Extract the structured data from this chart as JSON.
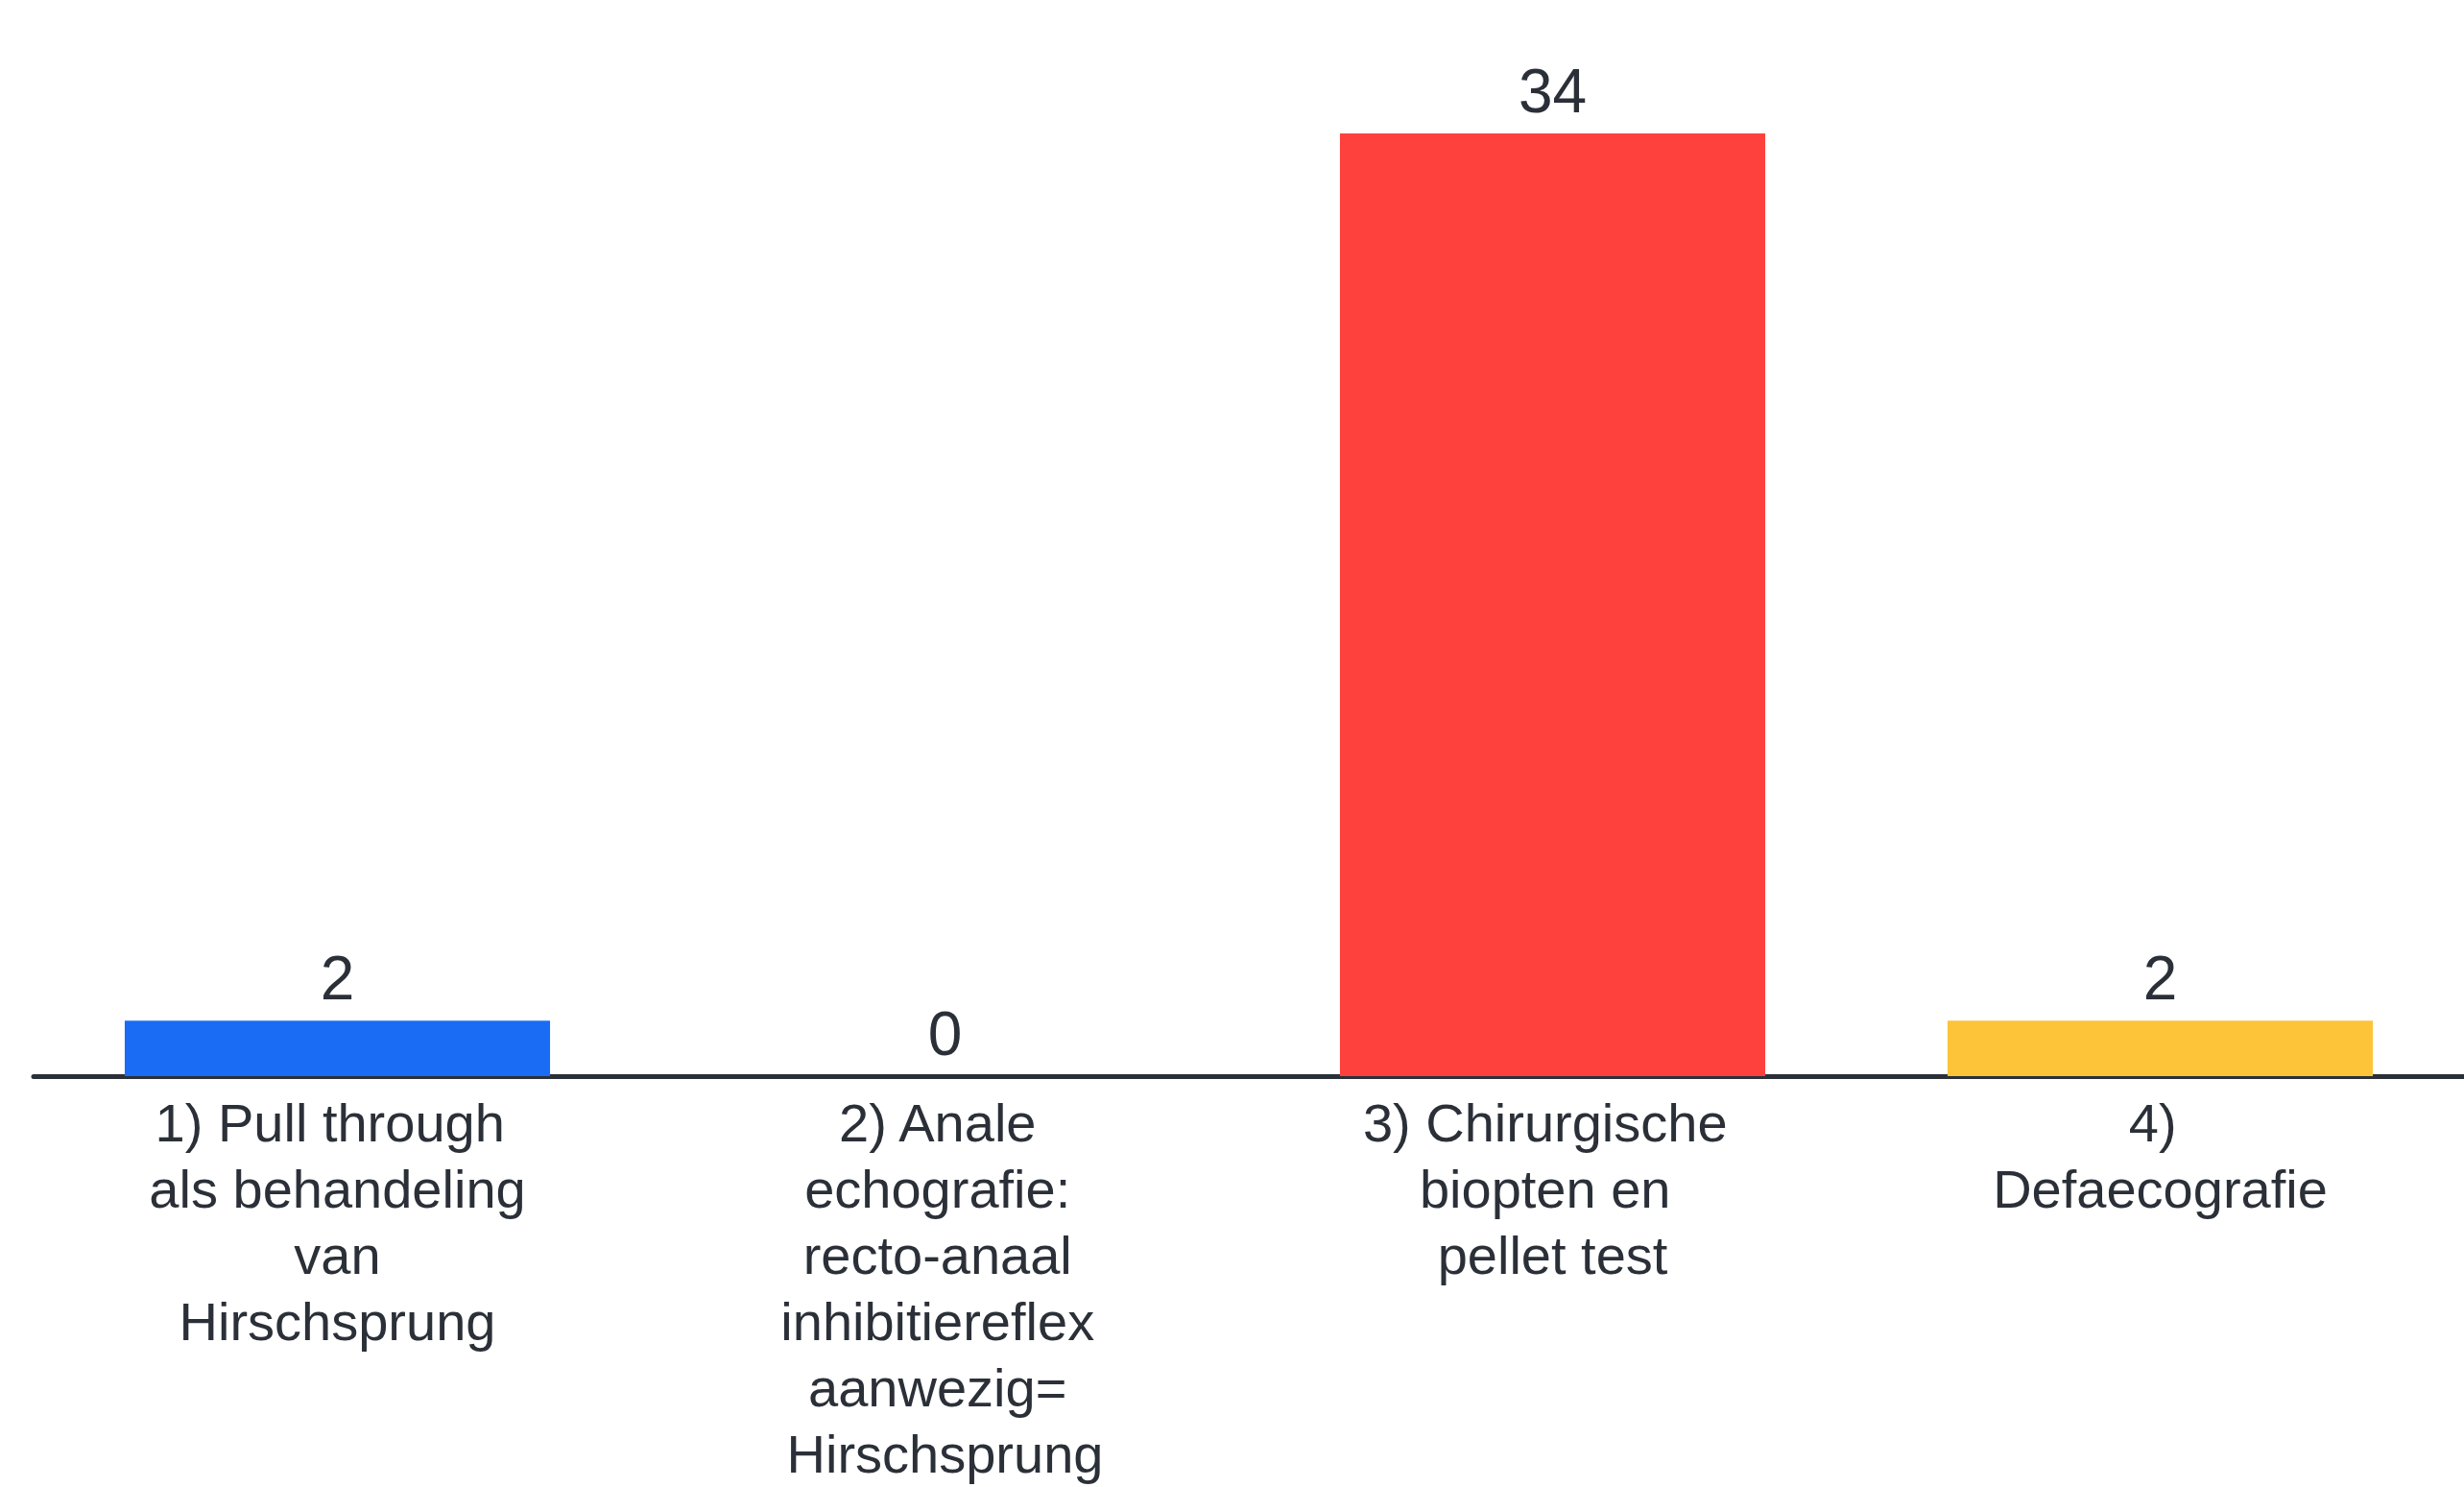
{
  "chart_data": {
    "type": "bar",
    "categories": [
      "1) Pull through als behandeling van Hirschsprung",
      "2) Anale echografie: recto-anaal inhibitiereflex aanwezig= Hirschsprung",
      "3) Chirurgische biopten en pellet test",
      "4) Defaecografie"
    ],
    "values": [
      2,
      0,
      34,
      2
    ],
    "colors": [
      "#1a6cf5",
      "#ff413d",
      "#ff413d",
      "#fdc43a"
    ],
    "data_labels": true
  }
}
